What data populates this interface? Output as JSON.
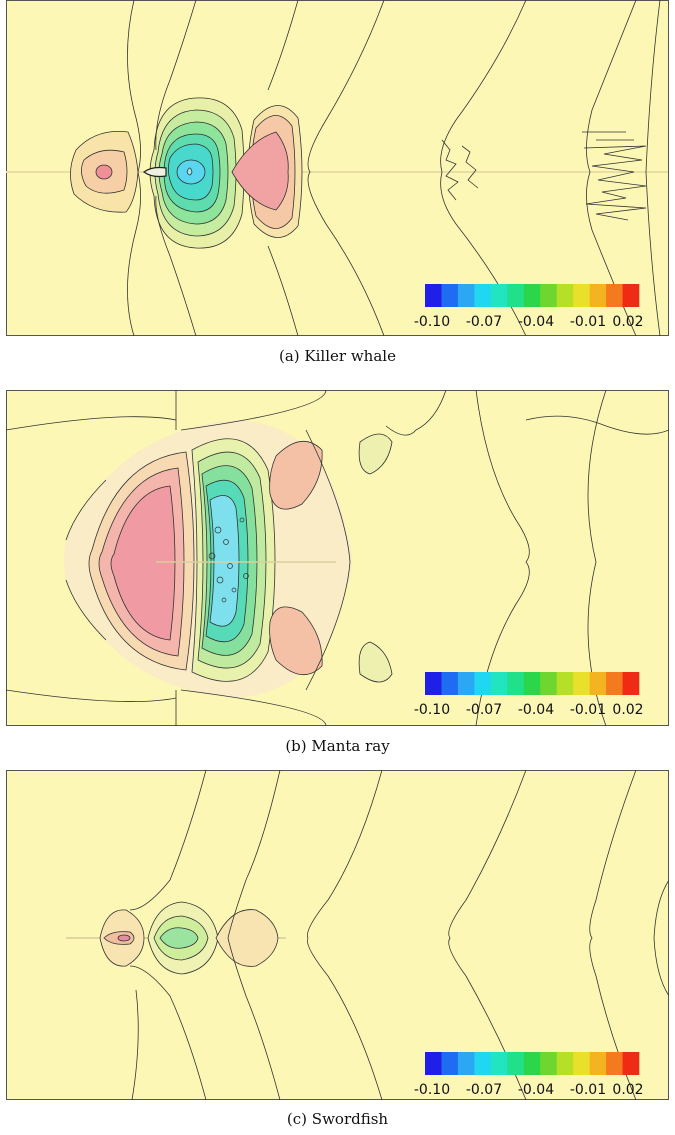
{
  "colorbar": {
    "colors": [
      "#1f1fe8",
      "#1f6bf2",
      "#2aa8f4",
      "#20d6f0",
      "#22e4c0",
      "#20e08a",
      "#2cd64a",
      "#6fd630",
      "#b6e028",
      "#e8e02a",
      "#f4b41f",
      "#f47a1f",
      "#ee2c16"
    ],
    "tick_labels": [
      "-0.10",
      "-0.07",
      "-0.04",
      "-0.01",
      "0.02"
    ]
  },
  "colors": {
    "background": "#fcf7b4",
    "contour_line": "#3a3a3a",
    "positive": "#ef6b7a",
    "negative": "#43d7e8"
  },
  "panels": [
    {
      "caption": "(a)  Killer whale"
    },
    {
      "caption": "(b)  Manta ray"
    },
    {
      "caption": "(c)  Swordfish"
    }
  ]
}
